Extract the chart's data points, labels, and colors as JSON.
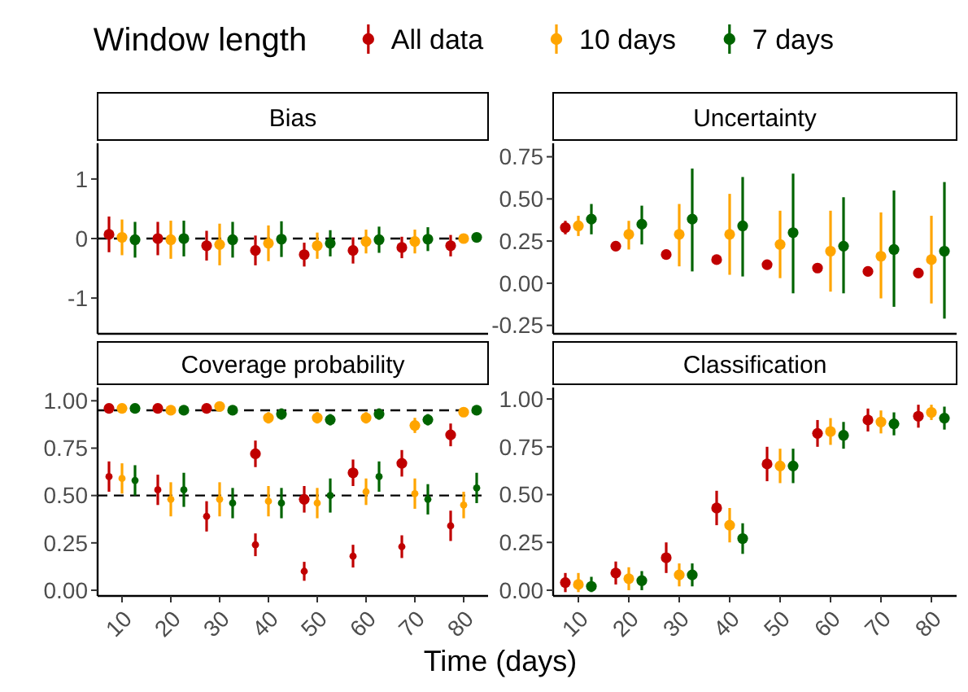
{
  "chart_data": [
    {
      "type": "scatter",
      "title": "Bias",
      "legend_title": "Window length",
      "legend": "top",
      "marker": "circle",
      "categories": [
        null,
        null,
        null,
        null,
        null,
        null,
        null,
        null
      ],
      "ylim": [
        -1.6,
        1.6
      ],
      "yticks": [
        -1,
        0,
        1
      ],
      "ref_lines": [
        {
          "axis": "y",
          "value": 0,
          "line_style": "dashed",
          "color": "#000000"
        }
      ],
      "series": [
        {
          "name": "All data",
          "color": "#c00000",
          "values": [
            0.07,
            0,
            -0.12,
            -0.2,
            -0.27,
            -0.2,
            -0.15,
            -0.12
          ],
          "errors": [
            0.3,
            0.28,
            0.25,
            0.25,
            0.2,
            0.22,
            0.18,
            0.18
          ]
        },
        {
          "name": "10 days",
          "color": "#ffa500",
          "values": [
            0.02,
            -0.02,
            -0.1,
            -0.08,
            -0.12,
            -0.05,
            -0.05,
            0
          ],
          "errors": [
            0.3,
            0.32,
            0.35,
            0.3,
            0.22,
            0.2,
            0.2,
            0.05
          ]
        },
        {
          "name": "7 days",
          "color": "#006400",
          "values": [
            -0.02,
            0,
            -0.02,
            -0.01,
            -0.08,
            -0.02,
            -0.01,
            0.02
          ],
          "errors": [
            0.3,
            0.3,
            0.3,
            0.3,
            0.22,
            0.22,
            0.2,
            0.05
          ]
        }
      ]
    },
    {
      "type": "scatter",
      "title": "Uncertainty",
      "marker": "circle",
      "categories": [
        null,
        null,
        null,
        null,
        null,
        null,
        null,
        null
      ],
      "ylim": [
        -0.3,
        0.83
      ],
      "yticks": [
        {
          "value": -0.25,
          "label": "-0.25"
        },
        {
          "value": 0,
          "label": "0.00"
        },
        {
          "value": 0.25,
          "label": "0.25"
        },
        {
          "value": 0.5,
          "label": "0.50"
        },
        {
          "value": 0.75,
          "label": "0.75"
        }
      ],
      "series": [
        {
          "color": "#c00000",
          "values": [
            0.33,
            0.22,
            0.17,
            0.14,
            0.11,
            0.09,
            0.07,
            0.06
          ],
          "errors": [
            0.04,
            0.02,
            0.02,
            0.02,
            0.02,
            0.02,
            0.02,
            0.02
          ]
        },
        {
          "color": "#ffa500",
          "values": [
            0.34,
            0.29,
            0.29,
            0.29,
            0.23,
            0.19,
            0.16,
            0.14
          ],
          "errors": [
            [
              0.28,
              0.4
            ],
            [
              0.2,
              0.37
            ],
            [
              0.1,
              0.47
            ],
            [
              0.05,
              0.53
            ],
            [
              0.03,
              0.43
            ],
            [
              -0.05,
              0.43
            ],
            [
              -0.09,
              0.42
            ],
            [
              -0.12,
              0.4
            ]
          ]
        },
        {
          "color": "#006400",
          "values": [
            0.38,
            0.35,
            0.38,
            0.34,
            0.3,
            0.22,
            0.2,
            0.19
          ],
          "errors": [
            [
              0.29,
              0.47
            ],
            [
              0.23,
              0.46
            ],
            [
              0.07,
              0.68
            ],
            [
              0.04,
              0.63
            ],
            [
              -0.06,
              0.65
            ],
            [
              -0.06,
              0.51
            ],
            [
              -0.14,
              0.55
            ],
            [
              -0.21,
              0.6
            ]
          ]
        }
      ]
    },
    {
      "type": "scatter",
      "title": "Coverage probability",
      "marker": "circle",
      "categories": [
        "10",
        "20",
        "30",
        "40",
        "50",
        "60",
        "70",
        "80"
      ],
      "ylim": [
        -0.03,
        1.07
      ],
      "yticks": [
        {
          "value": 0,
          "label": "0.00"
        },
        {
          "value": 0.25,
          "label": "0.25"
        },
        {
          "value": 0.5,
          "label": "0.50"
        },
        {
          "value": 0.75,
          "label": "0.75"
        },
        {
          "value": 1,
          "label": "1.00"
        }
      ],
      "ref_lines": [
        {
          "axis": "y",
          "value": 0.95,
          "line_style": "dashed",
          "color": "#000000"
        },
        {
          "axis": "y",
          "value": 0.5,
          "line_style": "dashed",
          "color": "#000000"
        }
      ],
      "series": [
        {
          "color": "#c00000",
          "values": [
            0.96,
            0.96,
            0.96,
            0.72,
            0.48,
            0.62,
            0.67,
            0.82
          ],
          "errors": [
            0.02,
            0.02,
            0.02,
            0.07,
            0.07,
            0.07,
            0.07,
            0.06
          ]
        },
        {
          "color": "#ffa500",
          "values": [
            0.96,
            0.95,
            0.97,
            0.91,
            0.91,
            0.91,
            0.87,
            0.94
          ],
          "errors": [
            0.02,
            0.02,
            0.02,
            0.03,
            0.03,
            0.03,
            0.04,
            0.02
          ]
        },
        {
          "color": "#006400",
          "values": [
            0.96,
            0.95,
            0.95,
            0.93,
            0.9,
            0.93,
            0.9,
            0.95
          ],
          "errors": [
            0.02,
            0.02,
            0.02,
            0.03,
            0.03,
            0.03,
            0.03,
            0.02
          ]
        },
        {
          "color": "#c00000",
          "values": [
            0.6,
            0.53,
            0.39,
            0.24,
            0.1,
            0.18,
            0.23,
            0.34
          ],
          "errors": [
            0.08,
            0.08,
            0.08,
            0.06,
            0.05,
            0.06,
            0.06,
            0.08
          ]
        },
        {
          "color": "#ffa500",
          "values": [
            0.59,
            0.48,
            0.48,
            0.47,
            0.46,
            0.52,
            0.51,
            0.45
          ],
          "errors": [
            0.08,
            0.09,
            0.09,
            0.08,
            0.08,
            0.07,
            0.08,
            0.07
          ]
        },
        {
          "color": "#006400",
          "values": [
            0.58,
            0.53,
            0.46,
            0.46,
            0.5,
            0.6,
            0.48,
            0.54
          ],
          "errors": [
            0.08,
            0.09,
            0.08,
            0.08,
            0.09,
            0.08,
            0.08,
            0.08
          ]
        }
      ]
    },
    {
      "type": "scatter",
      "title": "Classification",
      "marker": "circle",
      "categories": [
        "10",
        "20",
        "30",
        "40",
        "50",
        "60",
        "70",
        "80"
      ],
      "ylim": [
        -0.03,
        1.06
      ],
      "yticks": [
        {
          "value": 0,
          "label": "0.00"
        },
        {
          "value": 0.25,
          "label": "0.25"
        },
        {
          "value": 0.5,
          "label": "0.50"
        },
        {
          "value": 0.75,
          "label": "0.75"
        },
        {
          "value": 1,
          "label": "1.00"
        }
      ],
      "xlabel": "Time (days)",
      "series": [
        {
          "color": "#c00000",
          "values": [
            0.04,
            0.09,
            0.17,
            0.43,
            0.66,
            0.82,
            0.89,
            0.91
          ],
          "errors": [
            0.05,
            0.06,
            0.08,
            0.09,
            0.09,
            0.07,
            0.06,
            0.06
          ]
        },
        {
          "color": "#ffa500",
          "values": [
            0.03,
            0.06,
            0.08,
            0.34,
            0.65,
            0.83,
            0.88,
            0.93
          ],
          "errors": [
            [
              -0.01,
              0.09
            ],
            0.06,
            0.06,
            0.09,
            0.09,
            0.07,
            0.06,
            0.04
          ]
        },
        {
          "color": "#006400",
          "values": [
            0.02,
            0.05,
            0.08,
            0.27,
            0.65,
            0.81,
            0.87,
            0.9
          ],
          "errors": [
            [
              -0.01,
              0.07
            ],
            0.05,
            0.06,
            0.08,
            0.09,
            0.07,
            0.06,
            0.06
          ]
        }
      ]
    }
  ]
}
